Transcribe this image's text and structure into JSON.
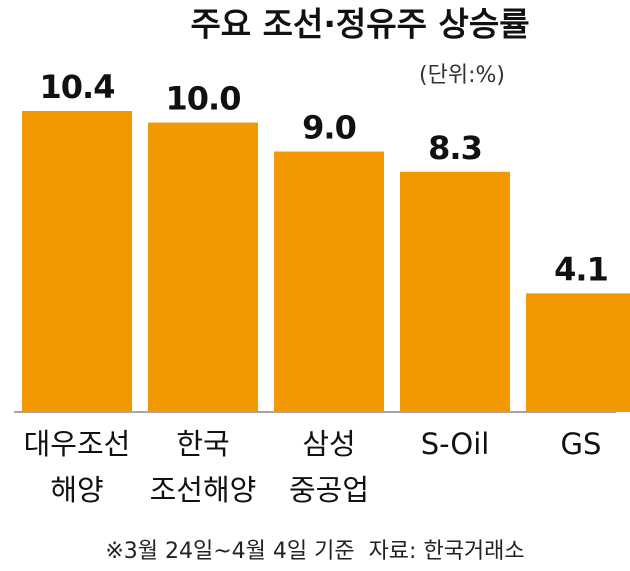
{
  "chart_data": {
    "type": "bar",
    "title": "주요 조선·정유주 상승률",
    "unit": "(단위:%)",
    "categories": [
      [
        "대우조선",
        "해양"
      ],
      [
        "한국",
        "조선해양"
      ],
      [
        "삼성",
        "중공업"
      ],
      [
        "S-Oil"
      ],
      [
        "GS"
      ]
    ],
    "values": [
      10.4,
      10.0,
      9.0,
      8.3,
      4.1
    ],
    "value_labels": [
      "10.4",
      "10.0",
      "9.0",
      "8.3",
      "4.1"
    ],
    "color": "#f39800",
    "ylim": [
      0,
      10.4
    ],
    "footnote": "※3월 24일~4월 4일 기준  자료: 한국거래소"
  }
}
